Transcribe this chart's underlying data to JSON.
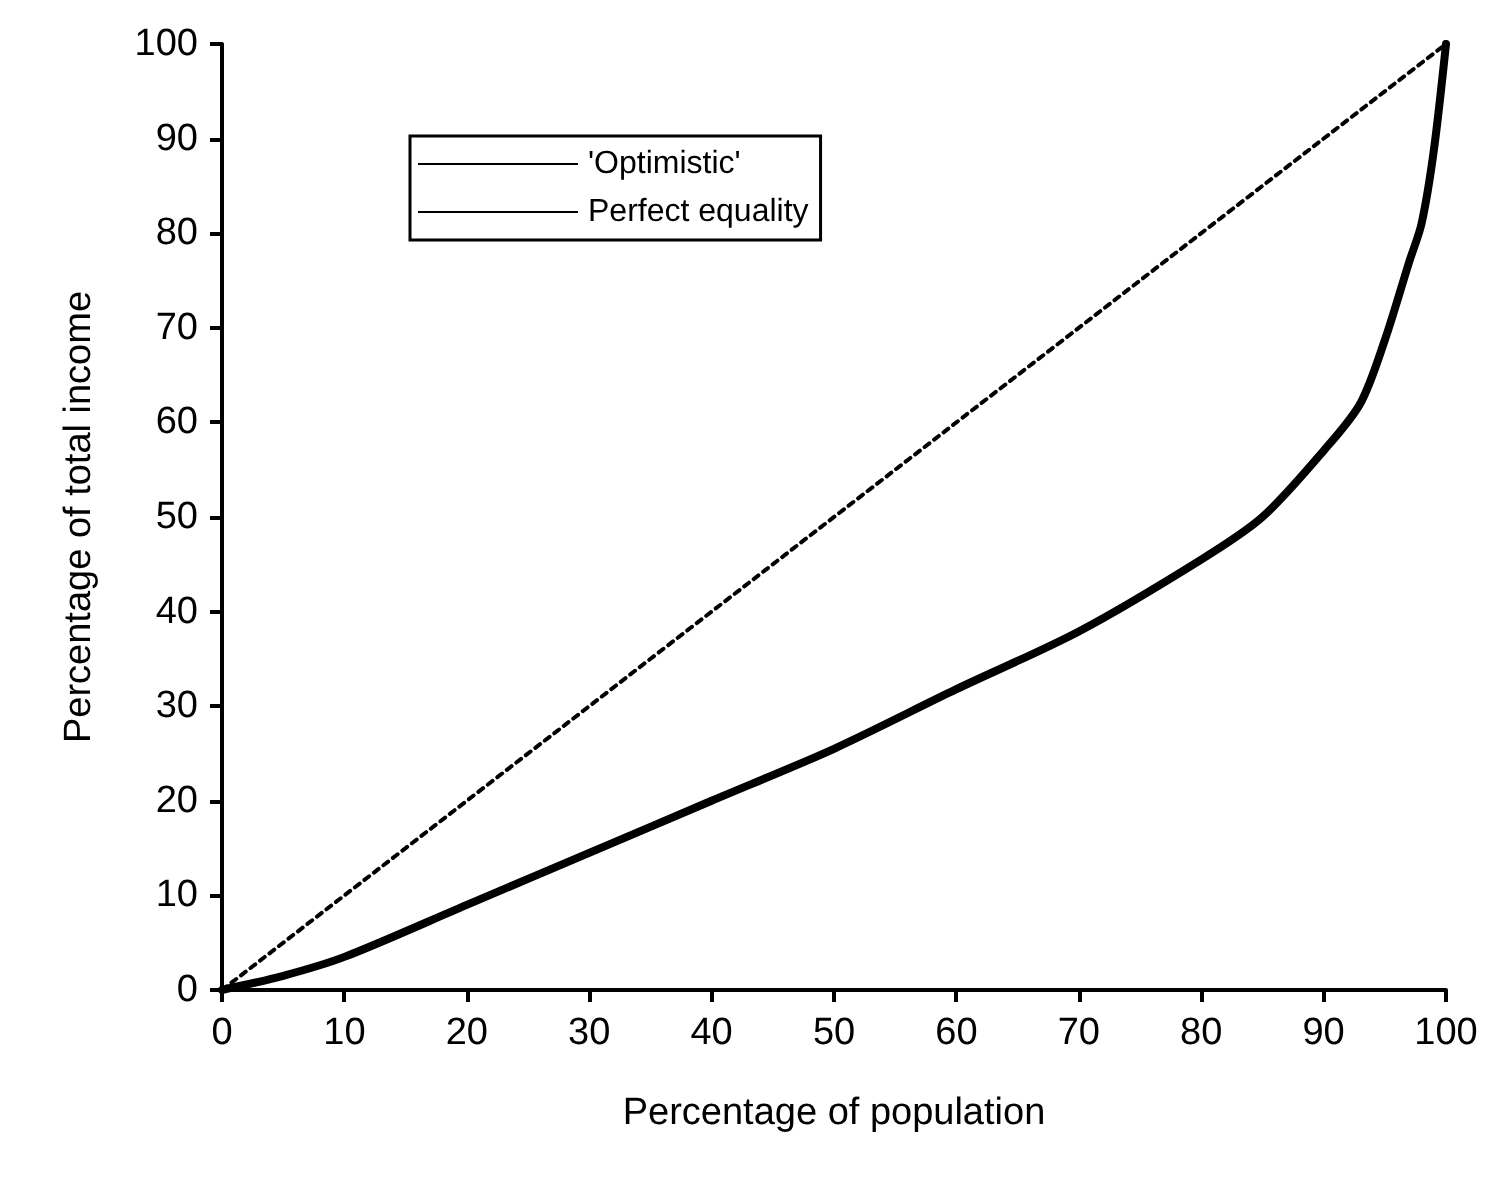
{
  "chart_data": {
    "type": "line",
    "xlabel": "Percentage of population",
    "ylabel": "Percentage of total income",
    "xlim": [
      0,
      100
    ],
    "ylim": [
      0,
      100
    ],
    "xticks": [
      0,
      10,
      20,
      30,
      40,
      50,
      60,
      70,
      80,
      90,
      100
    ],
    "yticks": [
      0,
      10,
      20,
      30,
      40,
      50,
      60,
      70,
      80,
      90,
      100
    ],
    "grid": false,
    "legend": "top left",
    "marker": "none",
    "series": [
      {
        "name": "'Optimistic'",
        "color": "#000000",
        "line_style": "solid",
        "x": [
          0,
          5,
          10,
          20,
          30,
          40,
          50,
          60,
          70,
          80,
          85,
          90,
          93,
          95,
          97,
          98,
          99,
          100
        ],
        "values": [
          0,
          1.5,
          3.5,
          9,
          14.5,
          20,
          25.5,
          31.8,
          37.9,
          45.5,
          50,
          57,
          62,
          68.7,
          77,
          81,
          88.7,
          100
        ]
      },
      {
        "name": "Perfect equality",
        "color": "#000000",
        "line_style": "dotted",
        "x": [
          0,
          100
        ],
        "values": [
          0,
          100
        ]
      }
    ]
  }
}
